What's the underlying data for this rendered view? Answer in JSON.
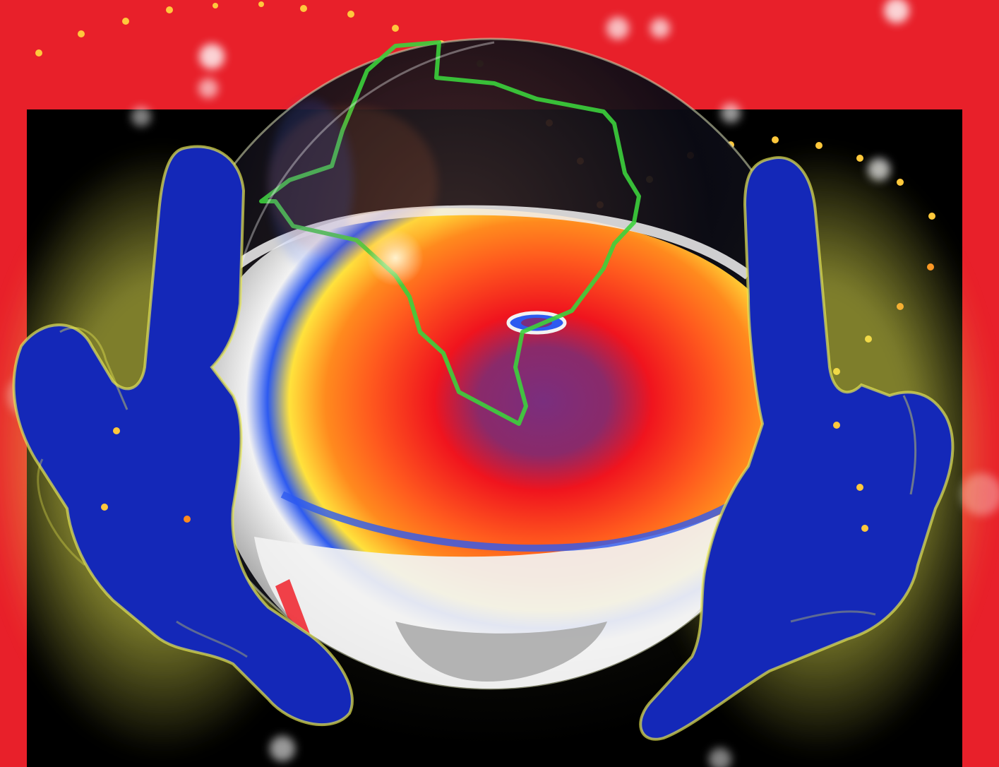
{
  "image": {
    "subject": "crystal-ball-with-hurricane",
    "colors": {
      "banner_red": "#E8202A",
      "space_black": "#000000",
      "hand_blue": "#1428B8",
      "hand_glow": "#E6E650",
      "storm_red": "#F0141E",
      "storm_orange": "#FF8A1E",
      "storm_yellow": "#FFE23C",
      "storm_blue": "#2D5AF0",
      "cloud_white": "#F2F2F2",
      "cloud_gray": "#A8A8A8",
      "eye_purple": "#7A2E7E",
      "border_line_green": "#3CD23C",
      "star_gold": "#FFC83C"
    }
  }
}
